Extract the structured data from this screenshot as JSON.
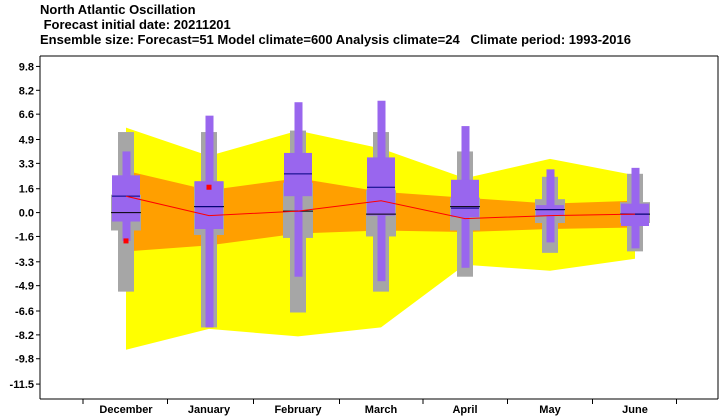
{
  "header": {
    "title": "North Atlantic Oscillation",
    "line2": " Forecast initial date: 20211201",
    "line3": "Ensemble size: Forecast=51 Model climate=600 Analysis climate=24   Climate period: 1993-2016"
  },
  "colors": {
    "outer_band": "#ffff00",
    "inner_band": "#ff9f00",
    "climate_box": "#a6a6a6",
    "forecast_box": "#9966ee",
    "median_line": "#000000",
    "mean_line": "#ff0000",
    "observed_point": "#ff0000"
  },
  "chart_data": {
    "type": "boxplot",
    "categories": [
      "December",
      "January",
      "February",
      "March",
      "April",
      "May",
      "June"
    ],
    "ylim": [
      -12.5,
      10.5
    ],
    "y_ticks": [
      9.8,
      8.2,
      6.6,
      4.9,
      3.3,
      1.6,
      0.0,
      -1.6,
      -3.3,
      -4.9,
      -6.6,
      -8.2,
      -9.8,
      -11.5
    ],
    "y_tick_labels": [
      "9.8",
      "8.2",
      "6.6",
      "4.9",
      "3.3",
      "1.6",
      "0.0",
      "-1.6",
      "-3.3",
      "-4.9",
      "-6.6",
      "-8.2",
      "-9.8",
      "-11.5"
    ],
    "outer_band": {
      "upper": [
        5.7,
        3.8,
        5.5,
        4.3,
        2.3,
        3.6,
        2.5
      ],
      "lower": [
        -9.2,
        -7.8,
        -8.3,
        -7.7,
        -3.5,
        -3.9,
        -3.1
      ]
    },
    "inner_band": {
      "upper": [
        2.8,
        1.5,
        2.3,
        1.4,
        1.0,
        0.6,
        0.8
      ],
      "lower": [
        -2.6,
        -2.2,
        -1.4,
        -1.2,
        -1.3,
        -1.1,
        -1.0
      ]
    },
    "climate": [
      {
        "min": -5.3,
        "q1": -1.2,
        "median": 0.0,
        "q3": 1.2,
        "max": 5.4
      },
      {
        "min": -7.7,
        "q1": -1.5,
        "median": 0.4,
        "q3": 2.1,
        "max": 5.4
      },
      {
        "min": -6.7,
        "q1": -1.7,
        "median": 0.1,
        "q3": 2.0,
        "max": 5.5
      },
      {
        "min": -5.3,
        "q1": -1.6,
        "median": -0.1,
        "q3": 1.5,
        "max": 5.4
      },
      {
        "min": -4.3,
        "q1": -1.2,
        "median": 0.4,
        "q3": 1.0,
        "max": 4.1
      },
      {
        "min": -2.7,
        "q1": -0.7,
        "median": 0.2,
        "q3": 0.9,
        "max": 2.4
      },
      {
        "min": -2.6,
        "q1": -0.7,
        "median": -0.1,
        "q3": 0.7,
        "max": 2.6
      }
    ],
    "forecast": [
      {
        "min": -1.9,
        "q1": -0.6,
        "median": 1.1,
        "q3": 2.5,
        "max": 4.1
      },
      {
        "min": -7.7,
        "q1": -1.1,
        "median": 0.4,
        "q3": 2.1,
        "max": 6.5
      },
      {
        "min": -4.3,
        "q1": 1.1,
        "median": 2.6,
        "q3": 4.0,
        "max": 7.4
      },
      {
        "min": -4.6,
        "q1": -0.2,
        "median": 1.7,
        "q3": 3.7,
        "max": 7.5
      },
      {
        "min": -3.7,
        "q1": -0.3,
        "median": 0.3,
        "q3": 2.2,
        "max": 5.8
      },
      {
        "min": -2.0,
        "q1": -0.2,
        "median": 0.2,
        "q3": 0.5,
        "max": 2.9
      },
      {
        "min": -2.4,
        "q1": -0.9,
        "median": -0.1,
        "q3": 0.6,
        "max": 3.0
      }
    ],
    "mean_line": [
      1.1,
      -0.2,
      0.1,
      0.8,
      -0.4,
      -0.2,
      -0.1
    ],
    "observed": [
      {
        "category": "December",
        "value": -1.9
      },
      {
        "category": "January",
        "value": 1.7
      }
    ]
  }
}
